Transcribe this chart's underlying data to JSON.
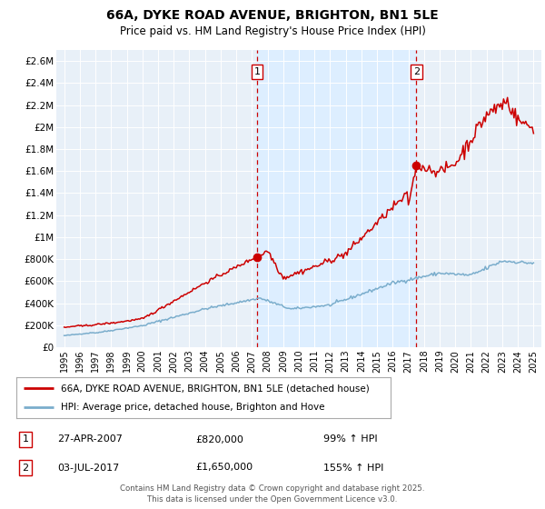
{
  "title": "66A, DYKE ROAD AVENUE, BRIGHTON, BN1 5LE",
  "subtitle": "Price paid vs. HM Land Registry's House Price Index (HPI)",
  "legend_property": "66A, DYKE ROAD AVENUE, BRIGHTON, BN1 5LE (detached house)",
  "legend_hpi": "HPI: Average price, detached house, Brighton and Hove",
  "footer": "Contains HM Land Registry data © Crown copyright and database right 2025.\nThis data is licensed under the Open Government Licence v3.0.",
  "property_color": "#cc0000",
  "hpi_color": "#7aadcc",
  "shade_color": "#ddeeff",
  "background_color": "#e8f0f8",
  "annotation1": {
    "label": "1",
    "date_str": "27-APR-2007",
    "price": "£820,000",
    "hpi_pct": "99% ↑ HPI",
    "x_year": 2007.32
  },
  "annotation2": {
    "label": "2",
    "date_str": "03-JUL-2017",
    "price": "£1,650,000",
    "hpi_pct": "155% ↑ HPI",
    "x_year": 2017.51
  },
  "ylim": [
    0,
    2700000
  ],
  "yticks": [
    0,
    200000,
    400000,
    600000,
    800000,
    1000000,
    1200000,
    1400000,
    1600000,
    1800000,
    2000000,
    2200000,
    2400000,
    2600000
  ],
  "ytick_labels": [
    "£0",
    "£200K",
    "£400K",
    "£600K",
    "£800K",
    "£1M",
    "£1.2M",
    "£1.4M",
    "£1.6M",
    "£1.8M",
    "£2M",
    "£2.2M",
    "£2.4M",
    "£2.6M"
  ],
  "xlim": [
    1994.5,
    2025.5
  ],
  "xticks": [
    1995,
    1996,
    1997,
    1998,
    1999,
    2000,
    2001,
    2002,
    2003,
    2004,
    2005,
    2006,
    2007,
    2008,
    2009,
    2010,
    2011,
    2012,
    2013,
    2014,
    2015,
    2016,
    2017,
    2018,
    2019,
    2020,
    2021,
    2022,
    2023,
    2024,
    2025
  ]
}
